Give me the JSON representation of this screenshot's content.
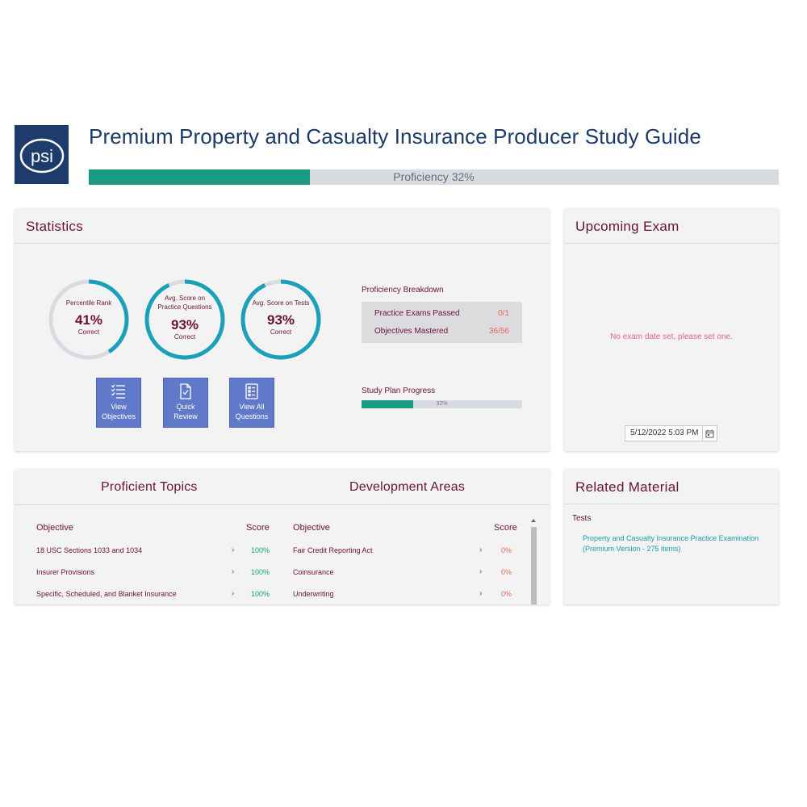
{
  "brand": {
    "logo_text": "psi",
    "logo_bg": "#1d3b6b"
  },
  "header": {
    "title": "Premium Property and Casualty Insurance Producer Study Guide",
    "proficiency_label": "Proficiency",
    "proficiency_text": "32%",
    "proficiency_value": 0.32
  },
  "colors": {
    "accent": "#1a9a83",
    "ring": "#1aa0b8",
    "ring_bg": "#d9dbe2",
    "heading": "#6b1234",
    "tile": "#6079c8"
  },
  "statistics": {
    "title": "Statistics",
    "gauges": [
      {
        "label_line1": "Percentile Rank",
        "label_line2": "",
        "value": "41%",
        "sub": "Correct",
        "fraction": 0.41
      },
      {
        "label_line1": "Avg. Score on",
        "label_line2": "Practice Questions",
        "value": "93%",
        "sub": "Correct",
        "fraction": 0.93
      },
      {
        "label_line1": "Avg. Score on Tests",
        "label_line2": "",
        "value": "93%",
        "sub": "Correct",
        "fraction": 0.93
      }
    ],
    "tiles": [
      {
        "line1": "View",
        "line2": "Objectives",
        "icon": "list-icon"
      },
      {
        "line1": "Quick",
        "line2": "Review",
        "icon": "document-check-icon"
      },
      {
        "line1": "View All",
        "line2": "Questions",
        "icon": "clipboard-list-icon"
      }
    ],
    "breakdown_title": "Proficiency Breakdown",
    "breakdown": [
      {
        "label": "Practice Exams Passed",
        "value": "0/1"
      },
      {
        "label": "Objectives Mastered",
        "value": "36/56"
      }
    ],
    "study_plan_title": "Study Plan Progress",
    "study_plan_text": "32%",
    "study_plan_value": 0.32
  },
  "exam": {
    "title": "Upcoming Exam",
    "message": "No exam date set, please set one.",
    "date_value": "5/12/2022 5:03 PM"
  },
  "topics": {
    "proficient_title": "Proficient Topics",
    "development_title": "Development Areas",
    "col_objective": "Objective",
    "col_score": "Score",
    "arrow": "›",
    "proficient": [
      {
        "objective": "18 USC Sections 1033 and 1034",
        "score": "100%"
      },
      {
        "objective": "Insurer Provisions",
        "score": "100%"
      },
      {
        "objective": "Specific, Scheduled, and Blanket Insurance",
        "score": "100%"
      }
    ],
    "development": [
      {
        "objective": "Fair Credit Reporting Act",
        "score": "0%"
      },
      {
        "objective": "Coinsurance",
        "score": "0%"
      },
      {
        "objective": "Underwriting",
        "score": "0%"
      }
    ]
  },
  "related": {
    "title": "Related Material",
    "subtitle": "Tests",
    "link_line1": "Property and Casualty Insurance Practice Examination",
    "link_line2": "(Premium Version - 275 items)"
  }
}
